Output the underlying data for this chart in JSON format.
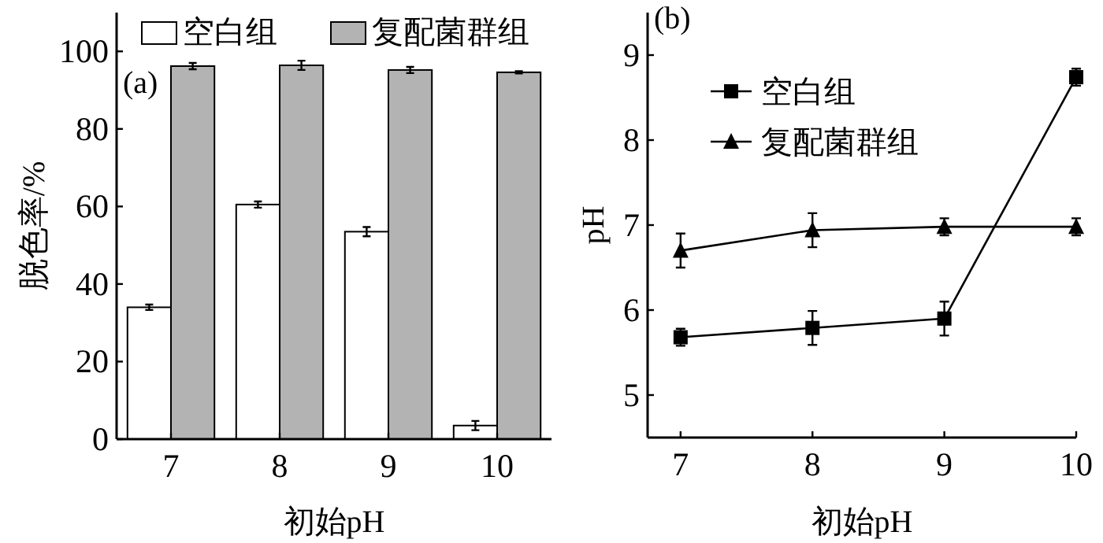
{
  "chart_data": [
    {
      "type": "bar",
      "categories": [
        "7",
        "8",
        "9",
        "10"
      ],
      "ylim": [
        0,
        110
      ],
      "yticks": [
        0,
        20,
        40,
        60,
        80,
        100
      ],
      "xlabel": "初始pH",
      "ylabel": "脱色率/%",
      "legend": "top",
      "grid": false,
      "annotations": [
        "(a)"
      ],
      "series": [
        {
          "name": "空白组",
          "color": "#ffffff",
          "values": [
            34,
            60.5,
            53.5,
            3.5
          ],
          "errors": [
            0.7,
            0.8,
            1.2,
            1.2
          ]
        },
        {
          "name": "复配菌群组",
          "color": "#b3b3b3",
          "values": [
            96.2,
            96.4,
            95.2,
            94.6
          ],
          "errors": [
            0.8,
            1.2,
            0.8,
            0.3
          ]
        }
      ]
    },
    {
      "type": "line",
      "x": [
        7,
        8,
        9,
        10
      ],
      "xlim": [
        6.75,
        10
      ],
      "xticks": [
        7,
        8,
        9,
        10
      ],
      "ylim": [
        4.5,
        9.5
      ],
      "yticks": [
        5,
        6,
        7,
        8,
        9
      ],
      "xlabel": "初始pH",
      "ylabel": "pH",
      "legend": "top left",
      "grid": false,
      "annotations": [
        "(b)"
      ],
      "series": [
        {
          "name": "空白组",
          "color": "#000000",
          "marker": "square",
          "values": [
            5.68,
            5.79,
            5.9,
            8.74
          ],
          "errors": [
            0.1,
            0.2,
            0.2,
            0.1
          ]
        },
        {
          "name": "复配菌群组",
          "color": "#000000",
          "marker": "triangle",
          "values": [
            6.7,
            6.94,
            6.98,
            6.98
          ],
          "errors": [
            0.2,
            0.2,
            0.1,
            0.1
          ]
        }
      ]
    }
  ]
}
